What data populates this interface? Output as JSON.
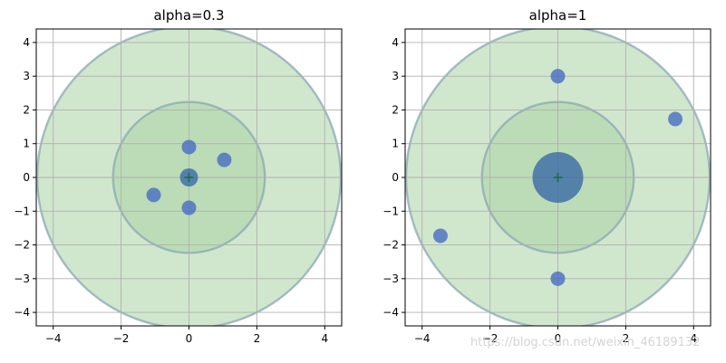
{
  "chart_data": [
    {
      "type": "scatter",
      "title": "alpha=0.3",
      "xlim": [
        -4.5,
        4.5
      ],
      "ylim": [
        -4.4,
        4.4
      ],
      "xticks": [
        -4,
        -2,
        0,
        2,
        4
      ],
      "yticks": [
        -4,
        -3,
        -2,
        -1,
        0,
        1,
        2,
        3,
        4
      ],
      "xtick_labels": [
        "−4",
        "−2",
        "0",
        "2",
        "4"
      ],
      "ytick_labels": [
        "−4",
        "−3",
        "−2",
        "−1",
        "0",
        "1",
        "2",
        "3",
        "4"
      ],
      "grid": true,
      "ellipses": [
        {
          "bound": "outer",
          "center": [
            0,
            0
          ],
          "axis_1": [
            2.0,
            4.0
          ],
          "axis_2": [
            -4.0,
            2.0
          ]
        },
        {
          "bound": "inner",
          "center": [
            0,
            0
          ],
          "axis_1": [
            1.0,
            2.0
          ],
          "axis_2": [
            -2.0,
            1.0
          ]
        }
      ],
      "points": [
        {
          "x": 0.0,
          "y": 0.0,
          "weight": "large"
        },
        {
          "x": 0.0,
          "y": 0.9,
          "weight": "small"
        },
        {
          "x": 0.0,
          "y": -0.9,
          "weight": "small"
        },
        {
          "x": 1.04,
          "y": 0.52,
          "weight": "small"
        },
        {
          "x": -1.04,
          "y": -0.52,
          "weight": "small"
        }
      ],
      "mean_marker": {
        "x": 0,
        "y": 0,
        "shape": "plus"
      }
    },
    {
      "type": "scatter",
      "title": "alpha=1",
      "xlim": [
        -4.5,
        4.5
      ],
      "ylim": [
        -4.4,
        4.4
      ],
      "xticks": [
        -4,
        -2,
        0,
        2,
        4
      ],
      "yticks": [
        -4,
        -3,
        -2,
        -1,
        0,
        1,
        2,
        3,
        4
      ],
      "xtick_labels": [
        "−4",
        "−2",
        "0",
        "2",
        "4"
      ],
      "ytick_labels": [
        "−4",
        "−3",
        "−2",
        "−1",
        "0",
        "1",
        "2",
        "3",
        "4"
      ],
      "grid": true,
      "ellipses": [
        {
          "bound": "outer",
          "center": [
            0,
            0
          ],
          "axis_1": [
            2.0,
            4.0
          ],
          "axis_2": [
            -4.0,
            2.0
          ]
        },
        {
          "bound": "inner",
          "center": [
            0,
            0
          ],
          "axis_1": [
            1.0,
            2.0
          ],
          "axis_2": [
            -2.0,
            1.0
          ]
        }
      ],
      "points": [
        {
          "x": 0.0,
          "y": 0.0,
          "weight": "xlarge"
        },
        {
          "x": 0.0,
          "y": 3.0,
          "weight": "small"
        },
        {
          "x": 0.0,
          "y": -3.0,
          "weight": "small"
        },
        {
          "x": 3.46,
          "y": 1.73,
          "weight": "small"
        },
        {
          "x": -3.46,
          "y": -1.73,
          "weight": "small"
        }
      ],
      "mean_marker": {
        "x": 0,
        "y": 0,
        "shape": "plus"
      }
    }
  ],
  "colors": {
    "ellipse_fill": "#a9d4a4",
    "ellipse_edge": "#8aa7b4",
    "point": "#4a6fc2",
    "center_point": "#3a6aa8",
    "grid": "#b0b0b0",
    "mean_marker": "#1f6b4a"
  },
  "watermark": "https://blog.csdn.net/weixin_46189132"
}
